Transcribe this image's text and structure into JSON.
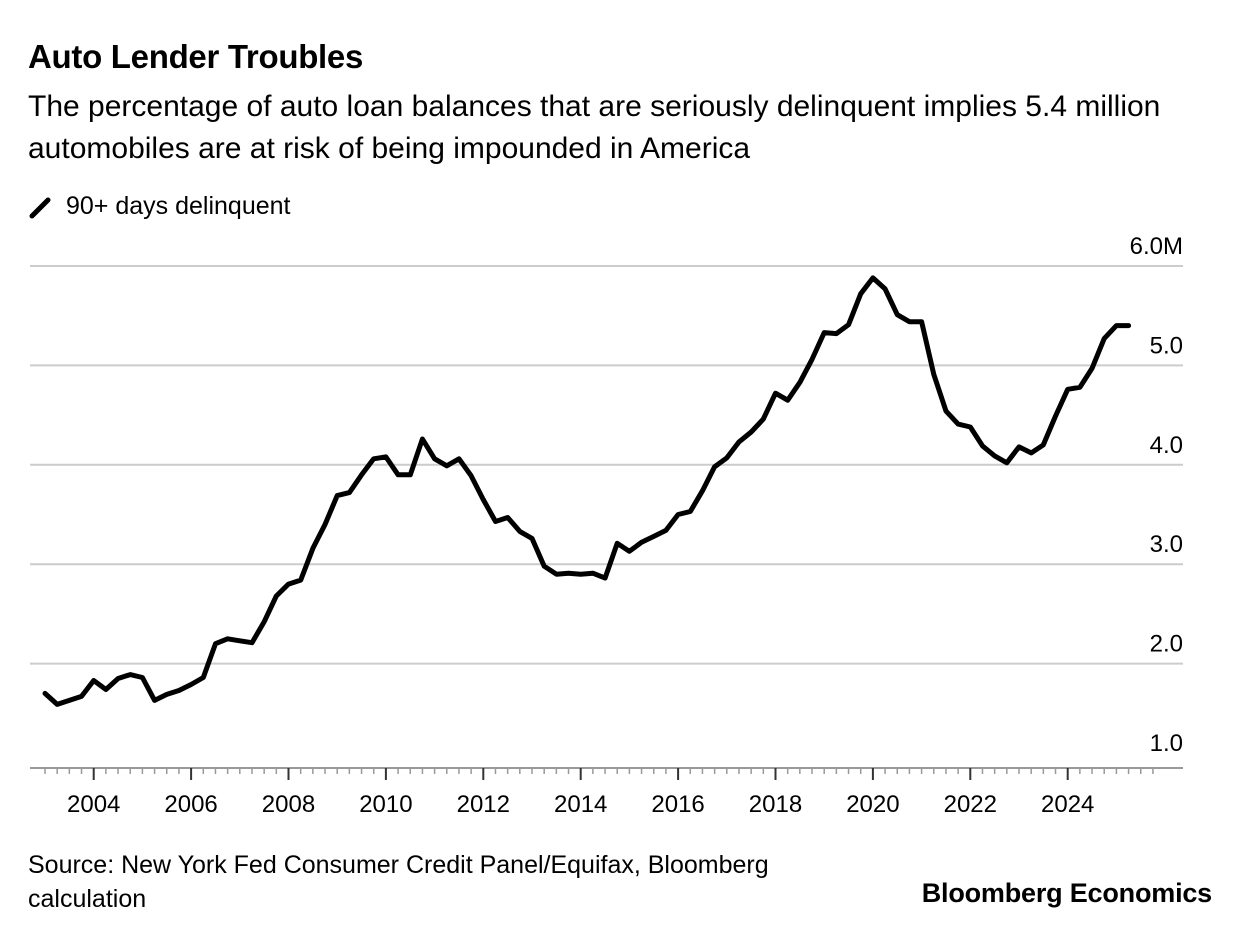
{
  "header": {
    "title": "Auto Lender Troubles",
    "subtitle": "The percentage of auto loan balances that are seriously delinquent implies 5.4 million automobiles are at risk of being impounded in America"
  },
  "legend": {
    "label": "90+ days delinquent",
    "icon": "diagonal-line-icon"
  },
  "footer": {
    "source": "Source: New York Fed Consumer Credit Panel/Equifax, Bloomberg calculation",
    "brand": "Bloomberg Economics"
  },
  "colors": {
    "line": "#000000",
    "grid": "#cccccc",
    "axis": "#999999",
    "background": "#ffffff"
  },
  "chart_data": {
    "type": "line",
    "title": "Auto Lender Troubles",
    "xlabel": "",
    "ylabel": "",
    "x_ticks": [
      "2004",
      "2006",
      "2008",
      "2010",
      "2012",
      "2014",
      "2016",
      "2018",
      "2020",
      "2022",
      "2024"
    ],
    "y_ticks": [
      "1.0",
      "2.0",
      "3.0",
      "4.0",
      "5.0",
      "6.0M"
    ],
    "ylim": [
      0.95,
      6.0
    ],
    "xlim": [
      2003.0,
      2025.75
    ],
    "grid": true,
    "legend_position": "top-left",
    "series": [
      {
        "name": "90+ days delinquent",
        "x": [
          2003.0,
          2003.25,
          2003.5,
          2003.75,
          2004.0,
          2004.25,
          2004.5,
          2004.75,
          2005.0,
          2005.25,
          2005.5,
          2005.75,
          2006.0,
          2006.25,
          2006.5,
          2006.75,
          2007.0,
          2007.25,
          2007.5,
          2007.75,
          2008.0,
          2008.25,
          2008.5,
          2008.75,
          2009.0,
          2009.25,
          2009.5,
          2009.75,
          2010.0,
          2010.25,
          2010.5,
          2010.75,
          2011.0,
          2011.25,
          2011.5,
          2011.75,
          2012.0,
          2012.25,
          2012.5,
          2012.75,
          2013.0,
          2013.25,
          2013.5,
          2013.75,
          2014.0,
          2014.25,
          2014.5,
          2014.75,
          2015.0,
          2015.25,
          2015.5,
          2015.75,
          2016.0,
          2016.25,
          2016.5,
          2016.75,
          2017.0,
          2017.25,
          2017.5,
          2017.75,
          2018.0,
          2018.25,
          2018.5,
          2018.75,
          2019.0,
          2019.25,
          2019.5,
          2019.75,
          2020.0,
          2020.25,
          2020.5,
          2020.75,
          2021.0,
          2021.25,
          2021.5,
          2021.75,
          2022.0,
          2022.25,
          2022.5,
          2022.75,
          2023.0,
          2023.25,
          2023.5,
          2023.75,
          2024.0,
          2024.25,
          2024.5,
          2024.75,
          2025.0,
          2025.25
        ],
        "values": [
          1.7,
          1.59,
          1.63,
          1.67,
          1.83,
          1.74,
          1.85,
          1.89,
          1.86,
          1.63,
          1.69,
          1.73,
          1.79,
          1.86,
          2.2,
          2.25,
          2.23,
          2.21,
          2.42,
          2.68,
          2.8,
          2.84,
          3.16,
          3.4,
          3.69,
          3.72,
          3.9,
          4.06,
          4.08,
          3.9,
          3.9,
          4.26,
          4.06,
          3.99,
          4.06,
          3.89,
          3.65,
          3.43,
          3.47,
          3.33,
          3.26,
          2.98,
          2.9,
          2.91,
          2.9,
          2.91,
          2.86,
          3.21,
          3.13,
          3.22,
          3.28,
          3.34,
          3.5,
          3.53,
          3.74,
          3.98,
          4.07,
          4.23,
          4.33,
          4.46,
          4.72,
          4.65,
          4.83,
          5.06,
          5.33,
          5.32,
          5.41,
          5.72,
          5.88,
          5.77,
          5.51,
          5.44,
          5.44,
          4.91,
          4.54,
          4.41,
          4.38,
          4.19,
          4.09,
          4.02,
          4.18,
          4.12,
          4.2,
          4.49,
          4.76,
          4.78,
          4.97,
          5.27,
          5.4,
          5.4
        ]
      }
    ]
  }
}
